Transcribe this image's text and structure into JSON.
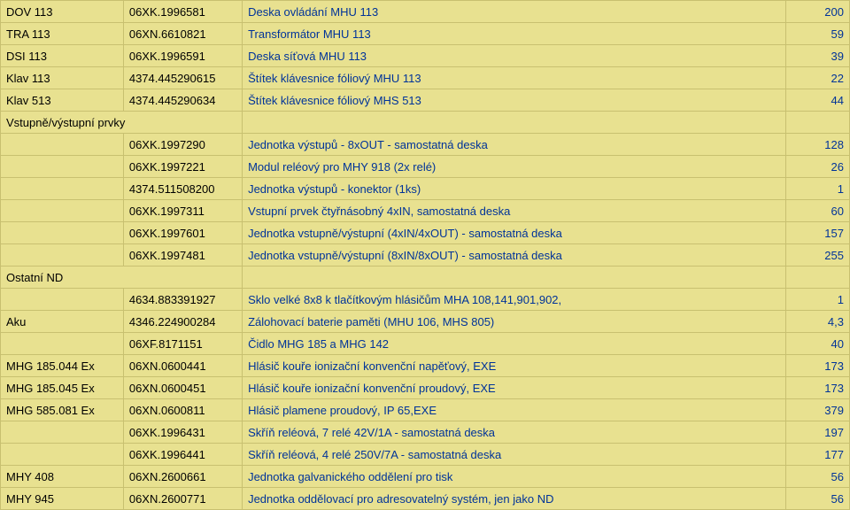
{
  "rows": [
    {
      "c0": "DOV 113",
      "c1": "06XK.1996581",
      "c2": "Deska ovládání MHU 113",
      "c3": "200"
    },
    {
      "c0": "TRA 113",
      "c1": "06XN.6610821",
      "c2": "Transformátor MHU 113",
      "c3": "59"
    },
    {
      "c0": "DSI 113",
      "c1": "06XK.1996591",
      "c2": "Deska síťová MHU 113",
      "c3": "39"
    },
    {
      "c0": "Klav 113",
      "c1": "4374.445290615",
      "c2": "Štítek klávesnice fóliový MHU 113",
      "c3": "22"
    },
    {
      "c0": "Klav 513",
      "c1": "4374.445290634",
      "c2": "Štítek klávesnice fóliový MHS 513",
      "c3": "44"
    },
    {
      "c0": "Vstupně/výstupní prvky",
      "span": 2,
      "section": true
    },
    {
      "c0": "",
      "c1": "06XK.1997290",
      "c2": "Jednotka výstupů - 8xOUT - samostatná deska",
      "c3": "128"
    },
    {
      "c0": "",
      "c1": "06XK.1997221",
      "c2": "Modul reléový pro MHY 918 (2x relé)",
      "c3": "26"
    },
    {
      "c0": "",
      "c1": "4374.511508200",
      "c2": "Jednotka výstupů - konektor (1ks)",
      "c3": "1"
    },
    {
      "c0": "",
      "c1": "06XK.1997311",
      "c2": "Vstupní prvek čtyřnásobný 4xIN, samostatná deska",
      "c3": "60"
    },
    {
      "c0": "",
      "c1": "06XK.1997601",
      "c2": "Jednotka vstupně/výstupní (4xIN/4xOUT) - samostatná deska",
      "c3": "157"
    },
    {
      "c0": "",
      "c1": "06XK.1997481",
      "c2": "Jednotka vstupně/výstupní (8xIN/8xOUT) - samostatná deska",
      "c3": "255"
    },
    {
      "c0": "Ostatní ND",
      "span": 2,
      "section": true
    },
    {
      "c0": "",
      "c1": "4634.883391927",
      "c2": "Sklo velké 8x8 k tlačítkovým hlásičům MHA 108,141,901,902,",
      "c3": "1"
    },
    {
      "c0": "Aku",
      "c1": "4346.224900284",
      "c2": "Zálohovací baterie paměti (MHU 106, MHS 805)",
      "c3": "4,3"
    },
    {
      "c0": "",
      "c1": "06XF.8171151",
      "c2": "Čidlo MHG 185 a MHG 142",
      "c3": "40"
    },
    {
      "c0": "MHG 185.044 Ex",
      "c1": "06XN.0600441",
      "c2": "Hlásič kouře ionizační konvenční napěťový, EXE",
      "c3": "173"
    },
    {
      "c0": "MHG 185.045 Ex",
      "c1": "06XN.0600451",
      "c2": "Hlásič kouře ionizační konvenční proudový, EXE",
      "c3": "173"
    },
    {
      "c0": "MHG 585.081 Ex",
      "c1": "06XN.0600811",
      "c2": "Hlásič plamene proudový, IP 65,EXE",
      "c3": "379"
    },
    {
      "c0": "",
      "c1": "06XK.1996431",
      "c2": "Skříň reléová, 7 relé 42V/1A - samostatná deska",
      "c3": "197"
    },
    {
      "c0": "",
      "c1": "06XK.1996441",
      "c2": "Skříň reléová, 4 relé 250V/7A - samostatná deska",
      "c3": "177"
    },
    {
      "c0": "MHY 408",
      "c1": "06XN.2600661",
      "c2": "Jednotka galvanického oddělení pro tisk",
      "c3": "56"
    },
    {
      "c0": "MHY 945",
      "c1": "06XN.2600771",
      "c2": "Jednotka oddělovací pro adresovatelný systém, jen jako ND",
      "c3": "56"
    }
  ]
}
